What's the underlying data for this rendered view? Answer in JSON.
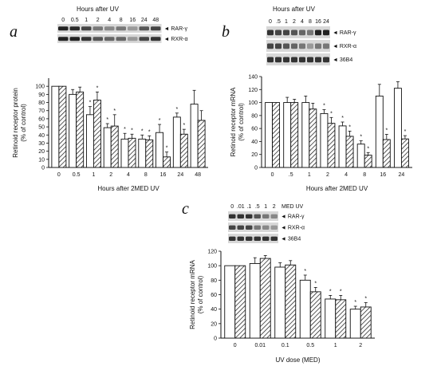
{
  "chart_data": [
    {
      "panel": "a",
      "type": "bar",
      "header": "Hours after UV",
      "blot_lane_labels": [
        "0",
        "0.5",
        "1",
        "2",
        "4",
        "8",
        "16",
        "24",
        "48"
      ],
      "blot_bands": [
        "RAR-γ",
        "RXR-α"
      ],
      "categories": [
        "0",
        "0.5",
        "1",
        "2",
        "4",
        "8",
        "16",
        "24",
        "48"
      ],
      "series": [
        {
          "name": "RAR-γ",
          "pattern": "open",
          "values": [
            100,
            90,
            65,
            49,
            35,
            35,
            43,
            62,
            78
          ],
          "err": [
            0,
            6,
            10,
            5,
            7,
            5,
            10,
            5,
            17
          ]
        },
        {
          "name": "RXR-α",
          "pattern": "hatched",
          "values": [
            100,
            93,
            83,
            51,
            36,
            34,
            13,
            41,
            58
          ],
          "err": [
            0,
            6,
            10,
            14,
            5,
            5,
            6,
            6,
            12
          ]
        }
      ],
      "stars": [
        [
          false,
          false,
          true,
          true,
          true,
          true,
          true,
          true,
          false
        ],
        [
          false,
          false,
          true,
          true,
          true,
          true,
          true,
          true,
          false
        ]
      ],
      "ylabel": "Retinoid receptor protein\n(% of control)",
      "xlabel": "Hours after 2MED UV",
      "yticks": [
        0,
        10,
        20,
        30,
        40,
        50,
        60,
        70,
        80,
        90,
        100
      ],
      "ylim": [
        0,
        110
      ],
      "grid": false,
      "legend": "none"
    },
    {
      "panel": "b",
      "type": "bar",
      "header": "Hours after UV",
      "blot_lane_labels": [
        "0",
        ".5",
        "1",
        "2",
        "4",
        "8",
        "16",
        "24"
      ],
      "blot_bands": [
        "RAR-γ",
        "RXR-α",
        "36B4"
      ],
      "categories": [
        "0",
        ".5",
        "1",
        "2",
        "4",
        "8",
        "16",
        "24"
      ],
      "series": [
        {
          "name": "RAR-γ",
          "pattern": "open",
          "values": [
            100,
            100,
            100,
            83,
            64,
            36,
            110,
            122
          ],
          "err": [
            0,
            8,
            10,
            6,
            6,
            5,
            18,
            10
          ]
        },
        {
          "name": "RXR-α",
          "pattern": "hatched",
          "values": [
            100,
            100,
            90,
            68,
            48,
            19,
            43,
            44
          ],
          "err": [
            0,
            5,
            9,
            9,
            8,
            4,
            8,
            5
          ]
        }
      ],
      "stars": [
        [
          false,
          false,
          false,
          true,
          true,
          true,
          false,
          false
        ],
        [
          false,
          false,
          false,
          true,
          true,
          true,
          true,
          true
        ]
      ],
      "ylabel": "Retinoid receptor mRNA\n(% of control)",
      "xlabel": "Hours after 2MED UV",
      "yticks": [
        0,
        20,
        40,
        60,
        80,
        100,
        120,
        140
      ],
      "ylim": [
        0,
        140
      ],
      "grid": false,
      "legend": "none"
    },
    {
      "panel": "c",
      "type": "bar",
      "header": "MED UV",
      "blot_lane_labels": [
        "0",
        ".01",
        ".1",
        ".5",
        "1",
        "2"
      ],
      "blot_bands": [
        "RAR-γ",
        "RXR-α",
        "36B4"
      ],
      "categories": [
        "0",
        "0.01",
        "0.1",
        "0.5",
        "1",
        "2"
      ],
      "series": [
        {
          "name": "RAR-γ",
          "pattern": "open",
          "values": [
            100,
            103,
            98,
            80,
            54,
            40
          ],
          "err": [
            0,
            8,
            6,
            7,
            5,
            4
          ]
        },
        {
          "name": "RXR-α",
          "pattern": "hatched",
          "values": [
            100,
            110,
            101,
            64,
            53,
            43
          ],
          "err": [
            0,
            4,
            6,
            6,
            6,
            6
          ]
        }
      ],
      "stars": [
        [
          false,
          false,
          false,
          true,
          true,
          true
        ],
        [
          false,
          false,
          false,
          true,
          true,
          true
        ]
      ],
      "ylabel": "Retinoid receptor mRNA\n(% of control)",
      "xlabel": "UV dose (MED)",
      "yticks": [
        0,
        20,
        40,
        60,
        80,
        100,
        120
      ],
      "ylim": [
        0,
        120
      ],
      "grid": false,
      "legend": "none"
    }
  ]
}
